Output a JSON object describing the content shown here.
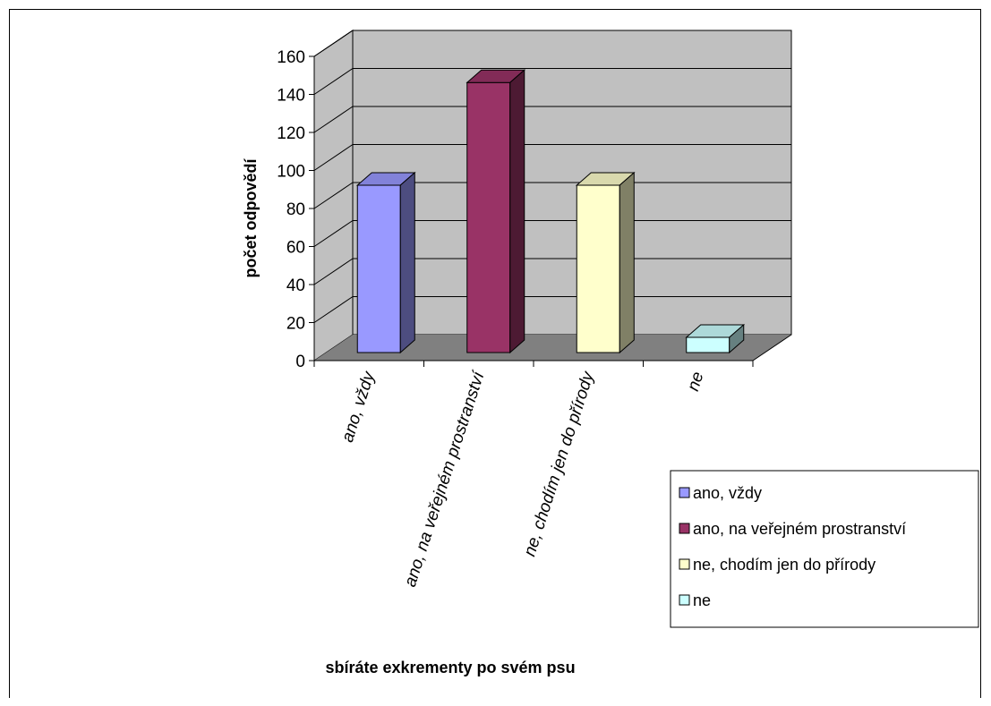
{
  "chart_data": {
    "type": "bar",
    "three_d": true,
    "categories": [
      "ano, vždy",
      "ano, na veřejném prostranství",
      "ne, chodím jen do přírody",
      "ne"
    ],
    "values": [
      88,
      142,
      88,
      8
    ],
    "colors": [
      "#9999ff",
      "#993366",
      "#ffffcc",
      "#ccffff"
    ],
    "xlabel": "sbíráte exkrementy po svém psu",
    "ylabel": "počet odpovědí",
    "ylim": [
      0,
      160
    ],
    "yticks": [
      0,
      20,
      40,
      60,
      80,
      100,
      120,
      140,
      160
    ],
    "grid": true,
    "wall_color": "#c0c0c0",
    "floor_color": "#808080",
    "legend": {
      "position": "right",
      "entries": [
        "ano, vždy",
        "ano, na veřejném prostranství",
        "ne, chodím jen do přírody",
        "ne"
      ]
    }
  }
}
